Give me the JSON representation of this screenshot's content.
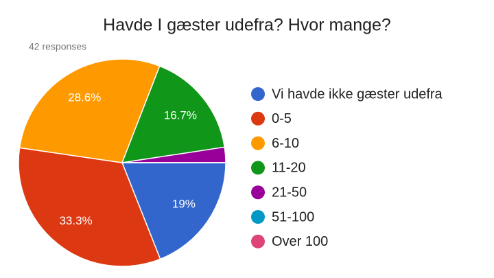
{
  "chart_data": {
    "type": "pie",
    "title": "Havde I gæster udefra? Hvor mange?",
    "subtitle": "42 responses",
    "categories": [
      "Vi havde ikke gæster udefra",
      "0-5",
      "6-10",
      "11-20",
      "21-50",
      "51-100",
      "Over 100"
    ],
    "values": [
      19,
      33.3,
      28.6,
      16.7,
      2.4,
      0,
      0
    ],
    "value_labels": [
      "19%",
      "33.3%",
      "28.6%",
      "16.7%",
      null,
      null,
      null
    ],
    "colors": [
      "#3366cc",
      "#dc3912",
      "#ff9900",
      "#109618",
      "#990099",
      "#0099c6",
      "#dd4477"
    ],
    "legend": "right"
  }
}
